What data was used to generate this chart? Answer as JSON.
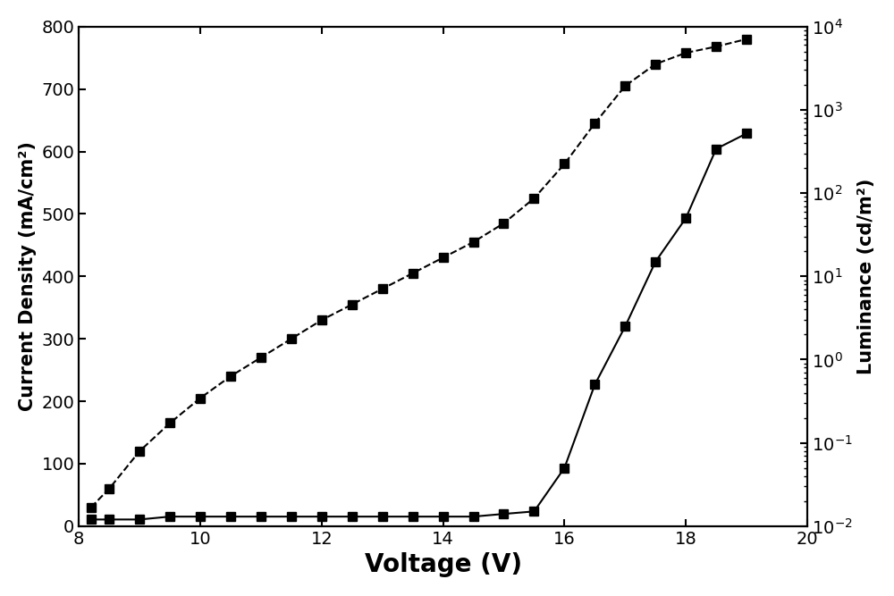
{
  "title": "",
  "xlabel": "Voltage (V)",
  "ylabel_left": "Current Density (mA/cm²)",
  "ylabel_right": "Luminance (cd/m²)",
  "xlim": [
    8,
    20
  ],
  "ylim_left": [
    0,
    800
  ],
  "ylim_right": [
    0.01,
    10000.0
  ],
  "bg_color": "#ffffff",
  "current_density": {
    "voltage": [
      8.2,
      8.5,
      9.0,
      9.5,
      10.0,
      10.5,
      11.0,
      11.5,
      12.0,
      12.5,
      13.0,
      13.5,
      14.0,
      14.5,
      15.0,
      15.5,
      16.0,
      16.5,
      17.0,
      17.5,
      18.0,
      18.5,
      19.0
    ],
    "current": [
      30,
      60,
      120,
      165,
      205,
      240,
      270,
      300,
      330,
      355,
      380,
      405,
      430,
      455,
      485,
      525,
      580,
      645,
      705,
      740,
      758,
      768,
      780
    ]
  },
  "luminance": {
    "voltage": [
      8.2,
      8.5,
      9.0,
      9.5,
      10.0,
      10.5,
      11.0,
      11.5,
      12.0,
      12.5,
      13.0,
      13.5,
      14.0,
      14.5,
      15.0,
      15.5,
      16.0,
      16.5,
      17.0,
      17.5,
      18.0,
      18.5,
      19.0
    ],
    "lum": [
      0.012,
      0.012,
      0.012,
      0.013,
      0.013,
      0.013,
      0.013,
      0.013,
      0.013,
      0.013,
      0.013,
      0.013,
      0.013,
      0.013,
      0.014,
      0.015,
      0.05,
      0.5,
      2.5,
      15,
      50,
      340,
      520
    ]
  },
  "marker": "s",
  "marker_size": 7,
  "line_color": "black",
  "xlabel_fontsize": 20,
  "ylabel_fontsize": 15,
  "tick_fontsize": 14,
  "xticks": [
    8,
    10,
    12,
    14,
    16,
    18,
    20
  ]
}
